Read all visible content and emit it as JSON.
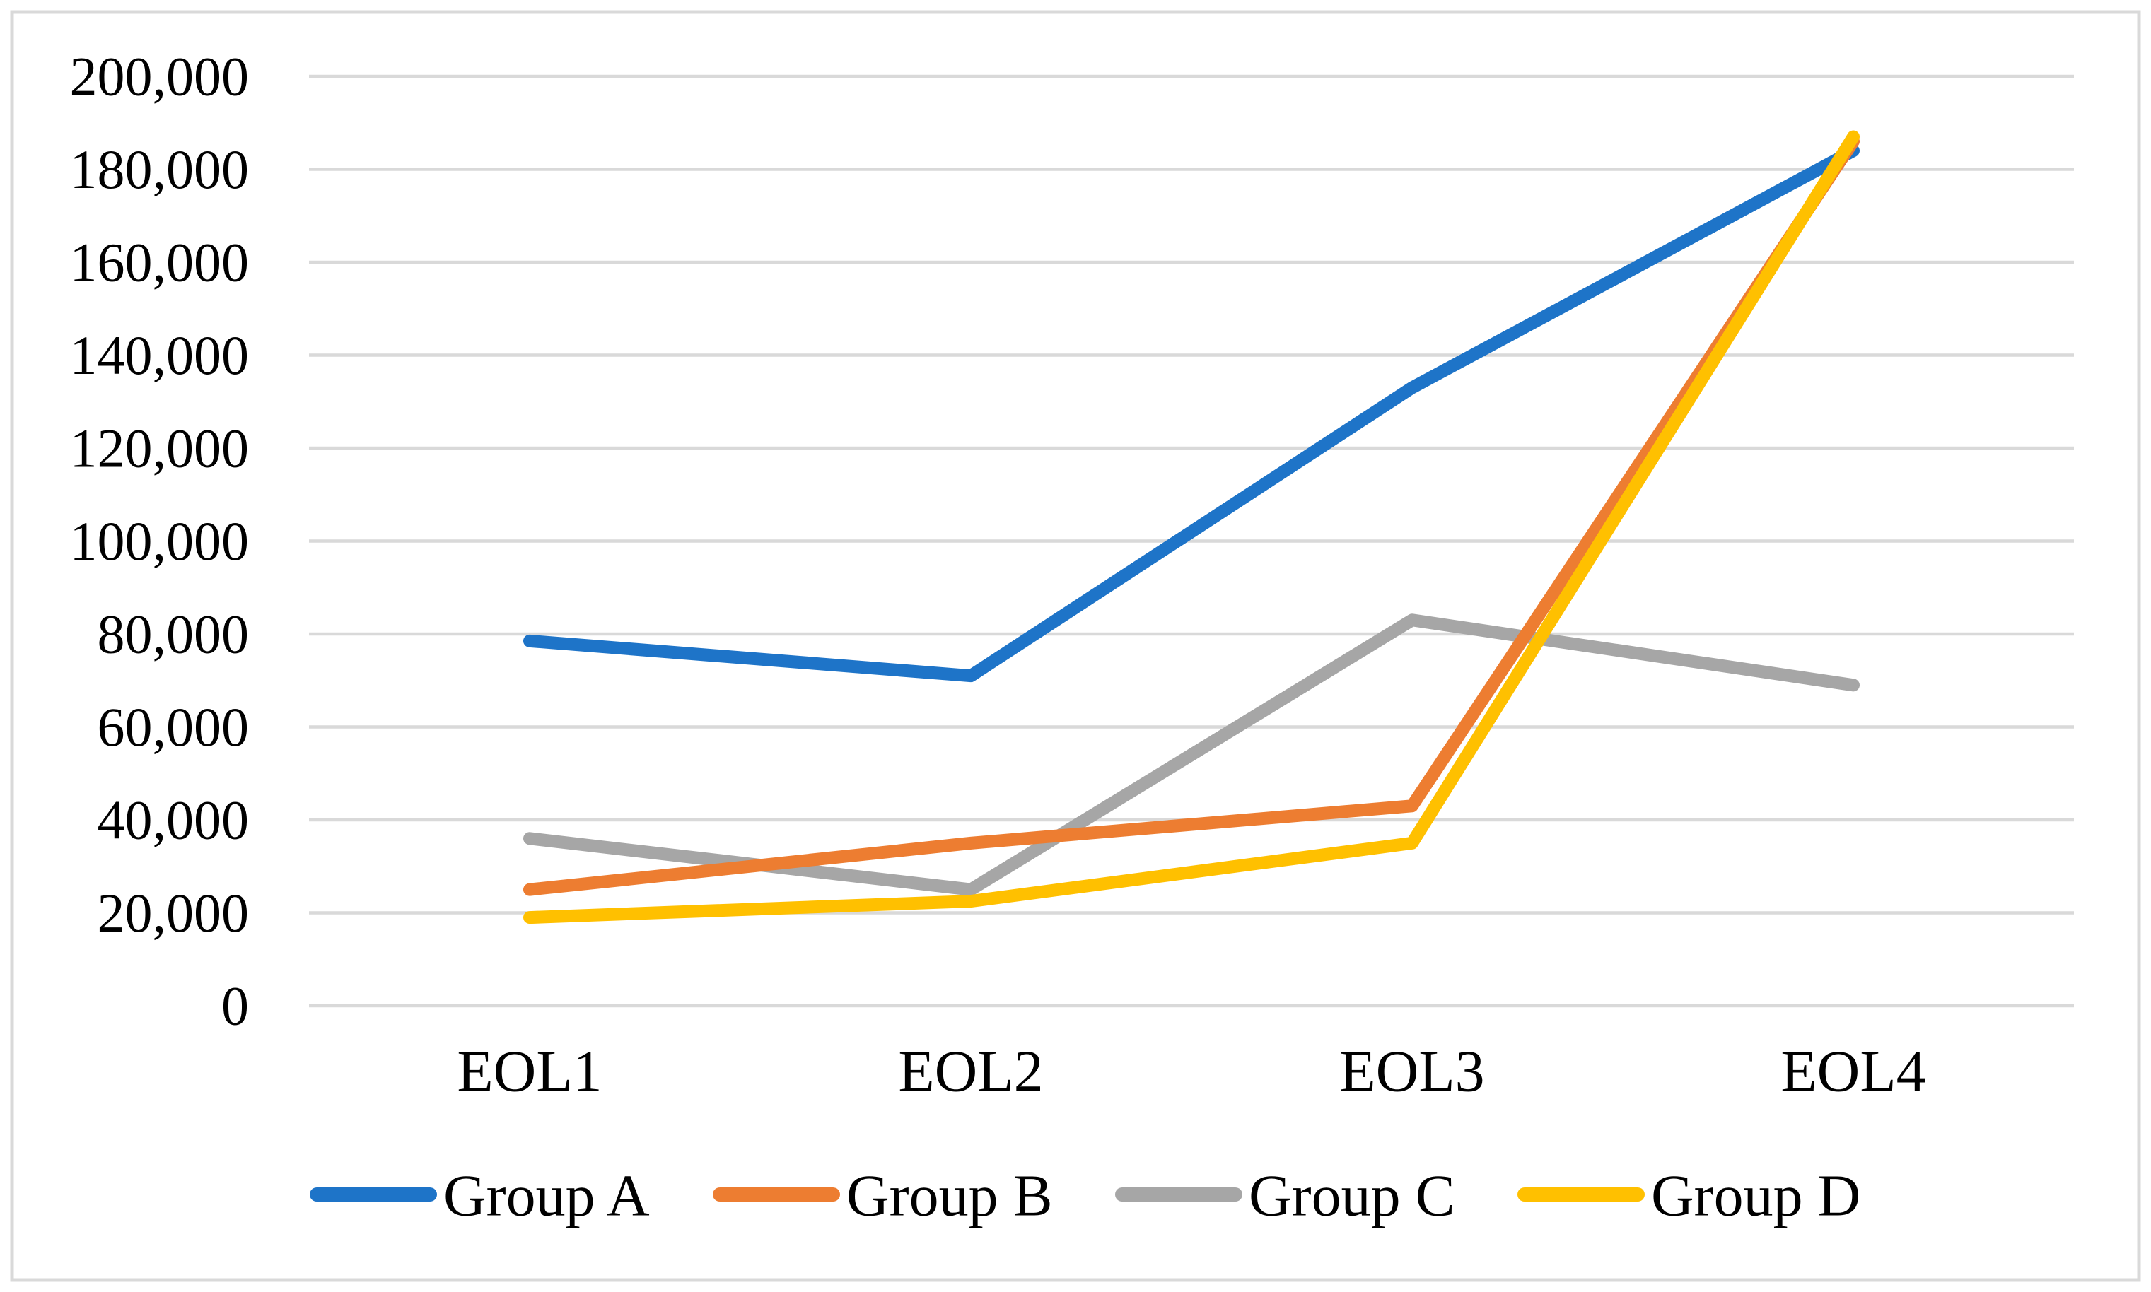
{
  "chart_data": {
    "type": "line",
    "title": "",
    "xlabel": "",
    "ylabel": "",
    "categories": [
      "EOL1",
      "EOL2",
      "EOL3",
      "EOL4"
    ],
    "series": [
      {
        "name": "Group A",
        "color": "#1E74C8",
        "values": [
          78500,
          71000,
          133000,
          184000
        ]
      },
      {
        "name": "Group B",
        "color": "#ED7D31",
        "values": [
          25000,
          35000,
          43000,
          186000
        ]
      },
      {
        "name": "Group C",
        "color": "#A6A6A6",
        "values": [
          36000,
          25000,
          83000,
          69000
        ]
      },
      {
        "name": "Group D",
        "color": "#FFC000",
        "values": [
          19000,
          22500,
          35000,
          187000
        ]
      }
    ],
    "draw_order": [
      0,
      2,
      1,
      3
    ],
    "ylim": [
      0,
      200000
    ],
    "ytick_step": 20000,
    "ytick_labels": [
      "0",
      "20,000",
      "40,000",
      "60,000",
      "80,000",
      "100,000",
      "120,000",
      "140,000",
      "160,000",
      "180,000",
      "200,000"
    ],
    "grid": true,
    "legend_position": "bottom",
    "legend_labels": [
      "Group A",
      "Group B",
      "Group C",
      "Group D"
    ]
  },
  "style": {
    "background": "#FFFFFF",
    "grid_color": "#D9D9D9",
    "border_color": "#D9D9D9",
    "text_color": "#000000"
  }
}
